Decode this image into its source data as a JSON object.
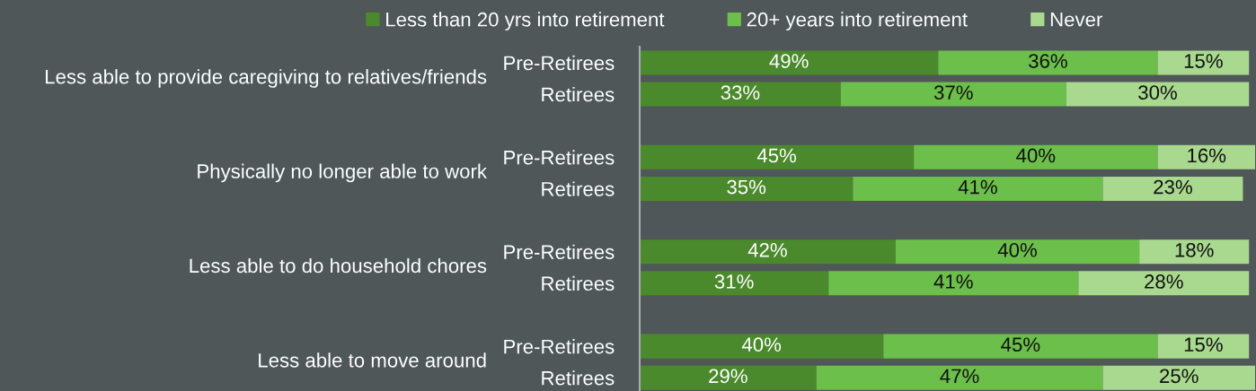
{
  "chart_data": {
    "type": "bar",
    "orientation": "horizontal",
    "stacked": true,
    "categories": [
      "Pre-Retirees",
      "Retirees",
      null,
      "Pre-Retirees",
      "Retirees",
      null,
      "Pre-Retirees",
      "Retirees",
      null,
      "Pre-Retirees",
      "Retirees"
    ],
    "series": [
      {
        "name": "Less than 20 yrs into retirement",
        "color": "#4b8a2c",
        "values": [
          49,
          33,
          null,
          45,
          35,
          null,
          42,
          31,
          null,
          40,
          29
        ],
        "value_labels": [
          "49%",
          "33%",
          null,
          "45%",
          "35%",
          null,
          "42%",
          "31%",
          null,
          "40%",
          "29%"
        ]
      },
      {
        "name": "20+ years into retirement",
        "color": "#6cbf4a",
        "values": [
          36,
          37,
          null,
          40,
          41,
          null,
          40,
          41,
          null,
          45,
          47
        ],
        "value_labels": [
          "36%",
          "37%",
          null,
          "40%",
          "41%",
          null,
          "40%",
          "41%",
          null,
          "45%",
          "47%"
        ]
      },
      {
        "name": "Never",
        "color": "#a9d98f",
        "values": [
          15,
          30,
          null,
          16,
          23,
          null,
          18,
          28,
          null,
          15,
          25
        ],
        "value_labels": [
          "15%",
          "30%",
          null,
          "16%",
          "23%",
          null,
          "18%",
          "28%",
          null,
          "15%",
          "25%"
        ]
      }
    ],
    "annotations": [
      "Less able to provide caregiving to relatives/friends",
      "Physically no longer able to work",
      "Less able to do household chores",
      "Less able to move around"
    ],
    "xlim": [
      0,
      101
    ],
    "tick_labels": "y",
    "legend": "top"
  }
}
